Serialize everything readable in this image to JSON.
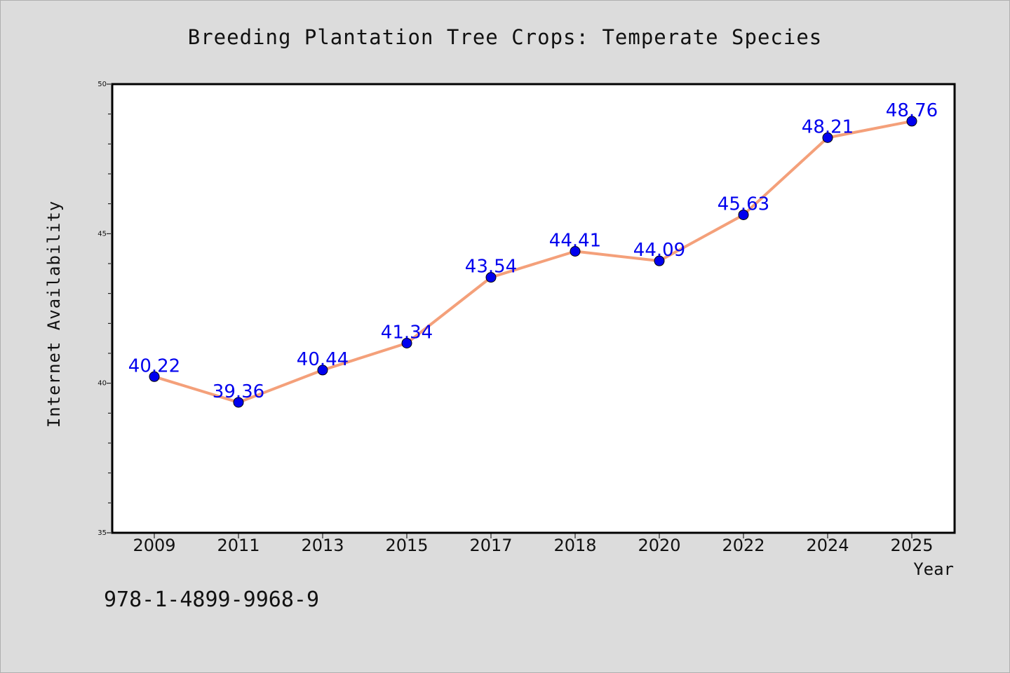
{
  "chart_data": {
    "type": "line",
    "title": "Breeding Plantation Tree Crops: Temperate Species",
    "xlabel": "Year",
    "ylabel": "Internet Availability",
    "categories": [
      "2009",
      "2011",
      "2013",
      "2015",
      "2017",
      "2018",
      "2020",
      "2022",
      "2024",
      "2025"
    ],
    "series": [
      {
        "values": [
          40.22,
          39.36,
          40.44,
          41.34,
          43.54,
          44.41,
          44.09,
          45.63,
          48.21,
          48.76
        ]
      }
    ],
    "data_labels": [
      "40.22",
      "39.36",
      "40.44",
      "41.34",
      "43.54",
      "44.41",
      "44.09",
      "45.63",
      "48.21",
      "48.76"
    ],
    "ylim": [
      35,
      50
    ],
    "yticks": [
      "35",
      "40",
      "45",
      "50"
    ],
    "grid": false,
    "colors": {
      "line": "#f4a07a",
      "marker": "#0000ee",
      "label": "#0000ee",
      "background": "#dcdcdc",
      "plot_bg": "#ffffff"
    }
  },
  "footer": {
    "isbn": "978-1-4899-9968-9"
  }
}
